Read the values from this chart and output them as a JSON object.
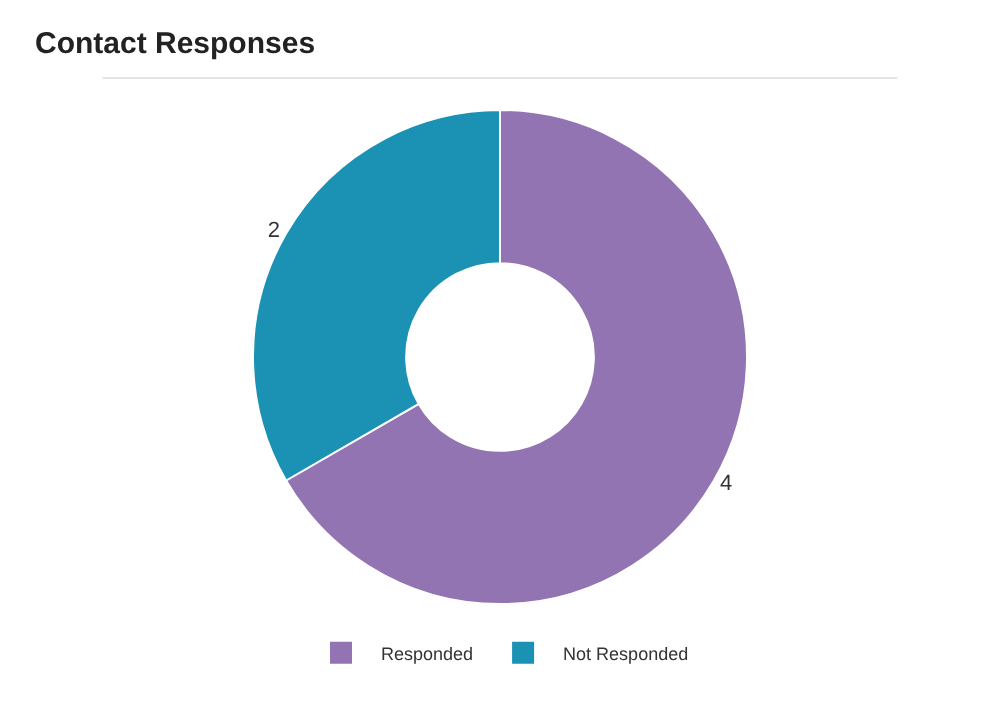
{
  "chart_data": {
    "type": "donut",
    "title": "Contact Responses",
    "categories": [
      "Responded",
      "Not Responded"
    ],
    "values": [
      4,
      2
    ],
    "colors": [
      "#9274b3",
      "#1b91b3"
    ],
    "data_labels": true,
    "legend": "bottom"
  }
}
